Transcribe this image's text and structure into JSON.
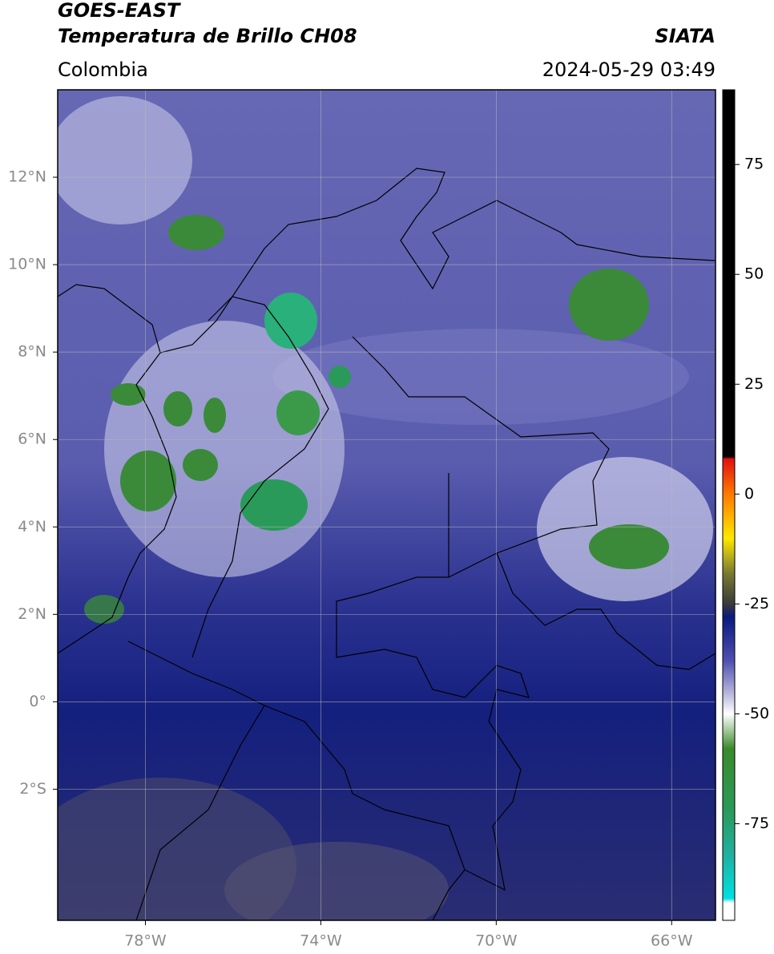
{
  "map": {
    "title": "GOES-EAST",
    "subtitle": "Temperatura de Brillo CH08",
    "source": "SIATA",
    "region": "Colombia",
    "timestamp": "2024-05-29 03:49",
    "lonlim": [
      -80,
      -65
    ],
    "latlim": [
      -5,
      14
    ],
    "lonticks": [
      {
        "value": -78,
        "label": "78°W"
      },
      {
        "value": -74,
        "label": "74°W"
      },
      {
        "value": -70,
        "label": "70°W"
      },
      {
        "value": -66,
        "label": "66°W"
      }
    ],
    "latticks": [
      {
        "value": 12,
        "label": "12°N"
      },
      {
        "value": 10,
        "label": "10°N"
      },
      {
        "value": 8,
        "label": "8°N"
      },
      {
        "value": 6,
        "label": "6°N"
      },
      {
        "value": 4,
        "label": "4°N"
      },
      {
        "value": 2,
        "label": "2°N"
      },
      {
        "value": 0,
        "label": "0°"
      },
      {
        "value": -2,
        "label": "2°S"
      }
    ],
    "grid": true,
    "colorbar": {
      "lim": [
        -97,
        92
      ],
      "ticks": [
        75,
        50,
        25,
        0,
        -25,
        -50,
        -75
      ],
      "stops": [
        {
          "value": 92,
          "color": "#000000"
        },
        {
          "value": 8.5,
          "color": "#000000"
        },
        {
          "value": 8,
          "color": "#e01010"
        },
        {
          "value": 0,
          "color": "#ff7a00"
        },
        {
          "value": -10,
          "color": "#ffe800"
        },
        {
          "value": -18,
          "color": "#7a7a30"
        },
        {
          "value": -25,
          "color": "#3a3a3a"
        },
        {
          "value": -28,
          "color": "#0a1a80"
        },
        {
          "value": -38,
          "color": "#5050b0"
        },
        {
          "value": -46,
          "color": "#c0c0e0"
        },
        {
          "value": -50,
          "color": "#ffffff"
        },
        {
          "value": -58,
          "color": "#3a8a2a"
        },
        {
          "value": -72,
          "color": "#2a9a5a"
        },
        {
          "value": -82,
          "color": "#20b0a0"
        },
        {
          "value": -92,
          "color": "#00e0e0"
        },
        {
          "value": -93,
          "color": "#ffffff"
        },
        {
          "value": -97,
          "color": "#ffffff"
        }
      ]
    }
  }
}
